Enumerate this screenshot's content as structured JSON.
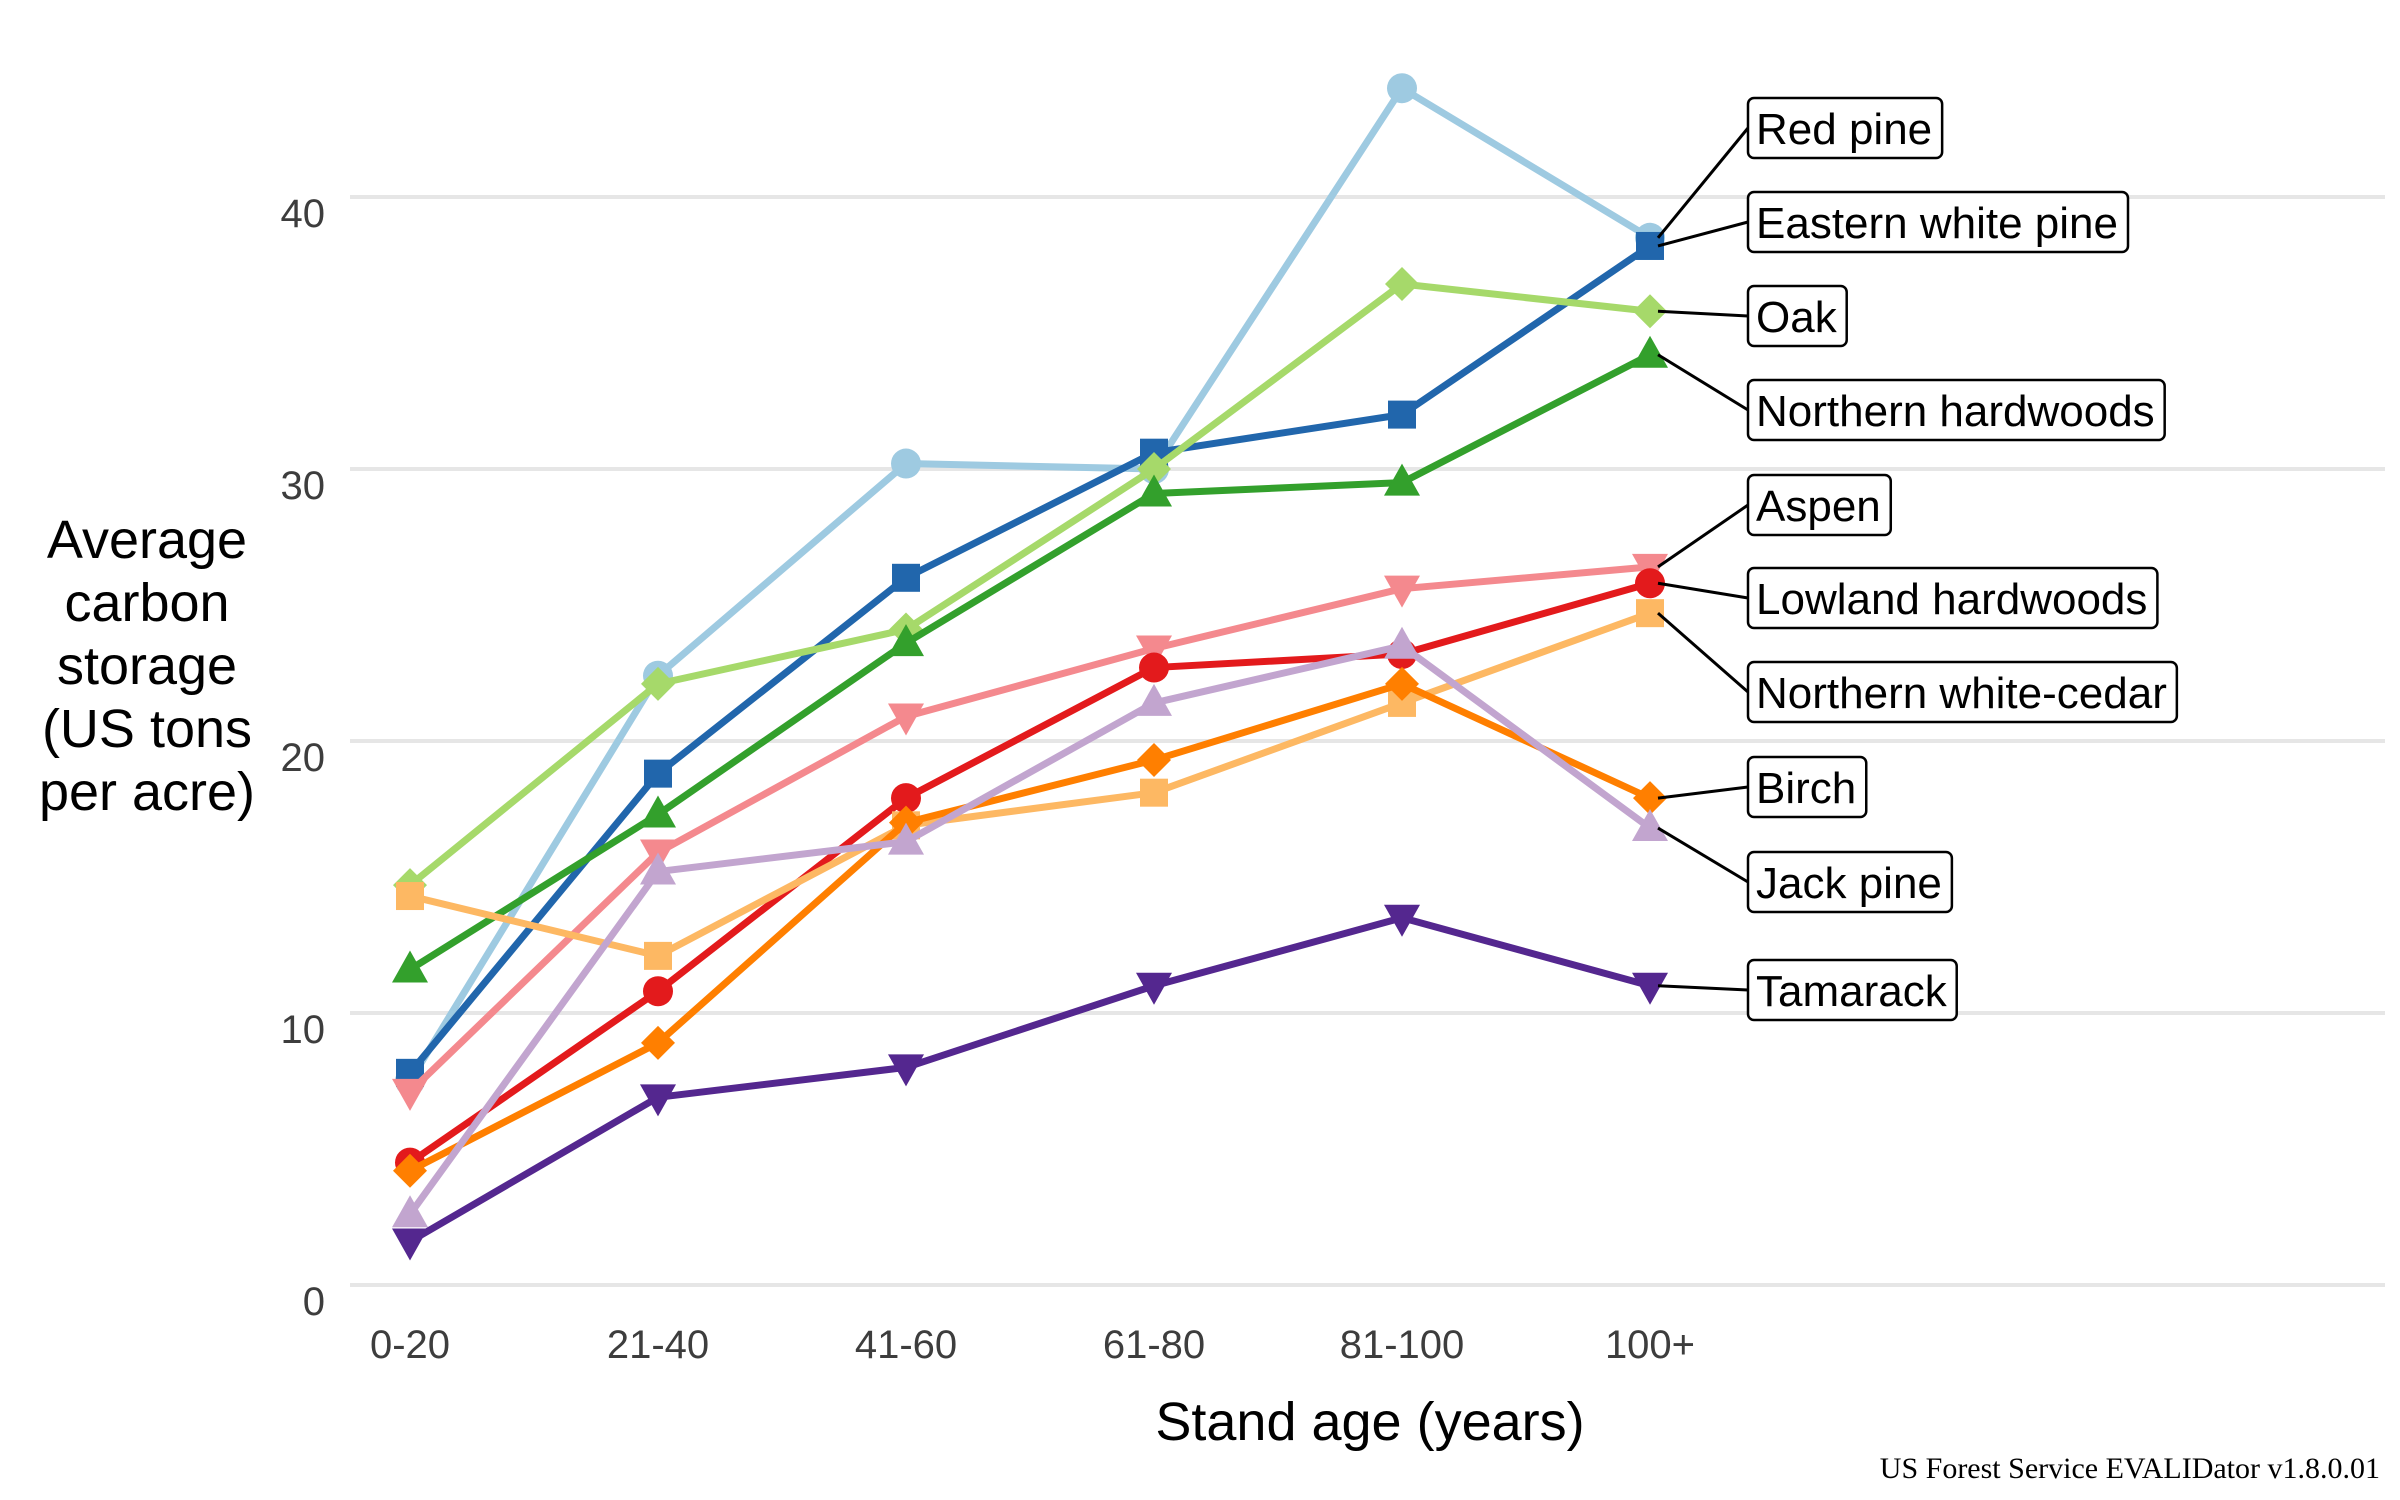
{
  "chart_data": {
    "type": "line",
    "title": "",
    "xlabel": "Stand age (years)",
    "ylabel": "Average carbon storage (US tons per acre)",
    "ylabel_lines": [
      "Average",
      "carbon",
      "storage",
      "(US tons",
      "per acre)"
    ],
    "categories": [
      "0-20",
      "21-40",
      "41-60",
      "61-80",
      "81-100",
      "100+"
    ],
    "ylim": [
      0,
      45
    ],
    "yticks": [
      0,
      10,
      20,
      30,
      40
    ],
    "grid": "horizontal",
    "legend": "direct labels at right end of lines",
    "series": [
      {
        "name": "Red pine",
        "color": "#9ECAE1",
        "marker": "circle",
        "values": [
          7.5,
          22.4,
          30.2,
          30.0,
          44.0,
          38.5
        ]
      },
      {
        "name": "Eastern white pine",
        "color": "#2166AC",
        "marker": "square",
        "values": [
          7.8,
          18.8,
          26.0,
          30.6,
          32.0,
          38.2
        ]
      },
      {
        "name": "Oak",
        "color": "#A6D96A",
        "marker": "diamond",
        "values": [
          14.7,
          22.1,
          24.1,
          30.0,
          36.8,
          35.8
        ]
      },
      {
        "name": "Northern hardwoods",
        "color": "#33A02C",
        "marker": "triangle-up",
        "values": [
          11.6,
          17.3,
          23.6,
          29.1,
          29.5,
          34.2
        ]
      },
      {
        "name": "Aspen",
        "color": "#F4898E",
        "marker": "triangle-down",
        "values": [
          7.1,
          15.9,
          20.9,
          23.4,
          25.6,
          26.4
        ]
      },
      {
        "name": "Lowland hardwoods",
        "color": "#E31A1C",
        "marker": "circle",
        "values": [
          4.5,
          10.8,
          17.9,
          22.7,
          23.2,
          25.8
        ]
      },
      {
        "name": "Northern white-cedar",
        "color": "#FDB863",
        "marker": "square",
        "values": [
          14.3,
          12.1,
          16.9,
          18.1,
          21.4,
          24.7
        ]
      },
      {
        "name": "Birch",
        "color": "#FF7F00",
        "marker": "diamond",
        "values": [
          4.2,
          8.9,
          17.0,
          19.3,
          22.1,
          17.9
        ]
      },
      {
        "name": "Jack pine",
        "color": "#C2A5CF",
        "marker": "triangle-up",
        "values": [
          2.6,
          15.2,
          16.3,
          21.4,
          23.5,
          16.8
        ]
      },
      {
        "name": "Tamarack",
        "color": "#54278F",
        "marker": "triangle-down",
        "values": [
          1.6,
          6.9,
          8.0,
          11.0,
          13.5,
          11.0
        ]
      }
    ]
  },
  "credit": "US Forest Service EVALIDator v1.8.0.01"
}
